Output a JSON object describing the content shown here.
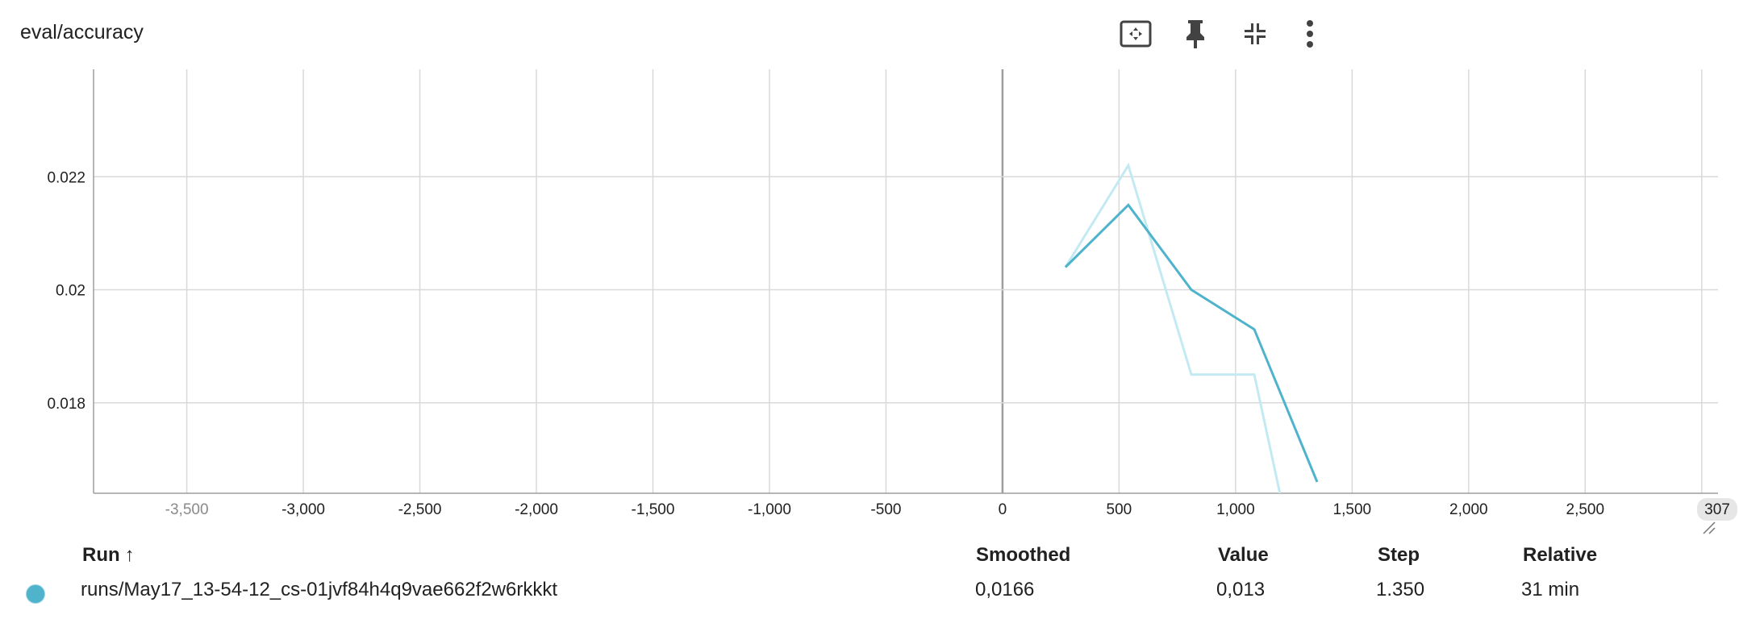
{
  "card": {
    "title": "eval/accuracy"
  },
  "toolbar": {
    "icons": [
      "fit-to-data-icon",
      "pin-icon",
      "collapse-icon",
      "more-vert-icon"
    ]
  },
  "colors": {
    "smoothed_line": "#4fb3cc",
    "raw_line": "#c3eaf3",
    "grid": "#d9d9d9",
    "axis": "#9e9e9e",
    "zero_line": "#9e9e9e"
  },
  "chart_data": {
    "type": "line",
    "title": "eval/accuracy",
    "xlim": [
      -3900,
      3070
    ],
    "ylim": [
      0.0164,
      0.0239
    ],
    "x_ticks": [
      -3500,
      -3000,
      -2500,
      -2000,
      -1500,
      -1000,
      -500,
      0,
      500,
      1000,
      1500,
      2000,
      2500
    ],
    "x_tick_labels": [
      "-3,500",
      "-3,000",
      "-2,500",
      "-2,000",
      "-1,500",
      "-1,000",
      "-500",
      "0",
      "500",
      "1,000",
      "1,500",
      "2,000",
      "2,500"
    ],
    "x_edge_label": "307",
    "y_ticks": [
      0.018,
      0.02,
      0.022
    ],
    "y_tick_labels": [
      "0.018",
      "0.02",
      "0.022"
    ],
    "grid": true,
    "series": [
      {
        "role": "raw",
        "x": [
          270,
          540,
          810,
          1080,
          1190
        ],
        "y": [
          0.0204,
          0.0222,
          0.0185,
          0.0185,
          0.0164
        ]
      },
      {
        "role": "smoothed",
        "x": [
          270,
          540,
          810,
          1080,
          1350
        ],
        "y": [
          0.0204,
          0.0215,
          0.02,
          0.0193,
          0.0166
        ]
      }
    ]
  },
  "table": {
    "headers": {
      "run": "Run",
      "sort_arrow": "↑",
      "smoothed": "Smoothed",
      "value": "Value",
      "step": "Step",
      "relative": "Relative"
    },
    "rows": [
      {
        "run": "runs/May17_13-54-12_cs-01jvf84h4q9vae662f2w6rkkkt",
        "smoothed": "0,0166",
        "value": "0,013",
        "step": "1.350",
        "relative": "31 min"
      }
    ]
  }
}
